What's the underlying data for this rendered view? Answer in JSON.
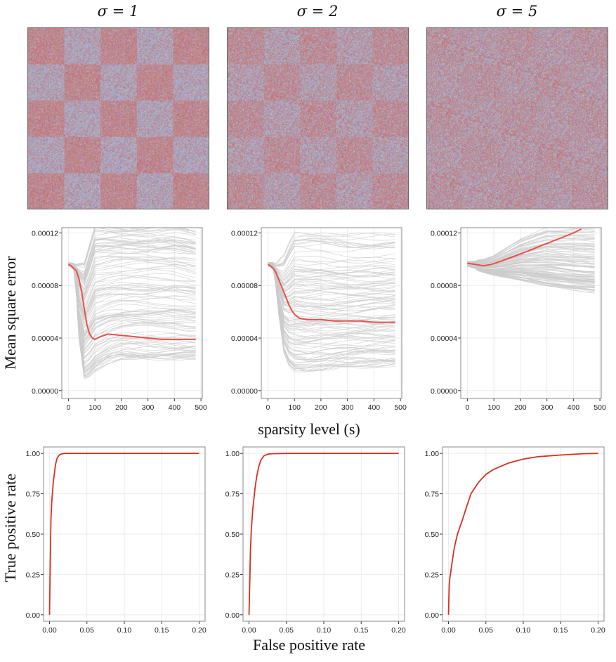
{
  "columns": [
    "σ = 1",
    "σ = 2",
    "σ = 5"
  ],
  "labels": {
    "mse_ylabel": "Mean square error",
    "mse_xlabel": "sparsity level (s)",
    "roc_ylabel": "True positive rate",
    "roc_xlabel": "False positive rate"
  },
  "colors": {
    "red_block": "#c87878",
    "blue_block": "#a7a2cc",
    "curve": "#e8514a",
    "roc": "#d7301f",
    "grey_lines": "#cccccc"
  },
  "chart_data": [
    {
      "type": "heatmap",
      "panel": "σ = 1",
      "grid": [
        5,
        5
      ],
      "pattern": "checkerboard",
      "noise": "high-contrast"
    },
    {
      "type": "heatmap",
      "panel": "σ = 2",
      "grid": [
        5,
        5
      ],
      "pattern": "checkerboard",
      "noise": "medium-contrast"
    },
    {
      "type": "heatmap",
      "panel": "σ = 5",
      "grid": [
        5,
        5
      ],
      "pattern": "checkerboard",
      "noise": "low-contrast"
    },
    {
      "type": "line",
      "panel": "σ = 1",
      "xticks": [
        "0",
        "100",
        "200",
        "300",
        "400",
        "500"
      ],
      "xlim": [
        -25,
        505
      ],
      "yticks": [
        "0.00000",
        "0.00004",
        "0.00008",
        "0.00012"
      ],
      "ylim": [
        -6e-06,
        0.000124
      ],
      "mean_curve": {
        "x": [
          0,
          10,
          20,
          30,
          40,
          50,
          60,
          70,
          80,
          90,
          100,
          120,
          150,
          200,
          250,
          300,
          350,
          400,
          450,
          480
        ],
        "y": [
          9.6e-05,
          9.5e-05,
          9.3e-05,
          9.1e-05,
          8.5e-05,
          7.5e-05,
          6.2e-05,
          5e-05,
          4.3e-05,
          4e-05,
          3.9e-05,
          4.1e-05,
          4.3e-05,
          4.2e-05,
          4.1e-05,
          4e-05,
          3.9e-05,
          3.9e-05,
          3.9e-05,
          3.9e-05
        ]
      },
      "envelope": {
        "x": [
          0,
          20,
          40,
          60,
          80,
          100,
          150,
          200,
          300,
          400,
          480
        ],
        "low": [
          9.5e-05,
          9.2e-05,
          4e-05,
          1e-05,
          1.2e-05,
          1.6e-05,
          2.2e-05,
          2.5e-05,
          2.5e-05,
          2.5e-05,
          2.5e-05
        ],
        "high": [
          9.8e-05,
          9.8e-05,
          9.6e-05,
          9.6e-05,
          0.00011,
          0.000124,
          0.000124,
          0.000124,
          0.000124,
          0.000124,
          0.00012
        ]
      }
    },
    {
      "type": "line",
      "panel": "σ = 2",
      "xticks": [
        "0",
        "100",
        "200",
        "300",
        "400",
        "500"
      ],
      "xlim": [
        -25,
        505
      ],
      "yticks": [
        "0.00000",
        "0.00004",
        "0.00008",
        "0.00012"
      ],
      "ylim": [
        -6e-06,
        0.000124
      ],
      "mean_curve": {
        "x": [
          0,
          10,
          20,
          30,
          40,
          50,
          60,
          70,
          80,
          90,
          100,
          120,
          150,
          200,
          250,
          300,
          350,
          400,
          450,
          480
        ],
        "y": [
          9.6e-05,
          9.5e-05,
          9.3e-05,
          9e-05,
          8.5e-05,
          8e-05,
          7.5e-05,
          7e-05,
          6.5e-05,
          6.1e-05,
          5.8e-05,
          5.5e-05,
          5.4e-05,
          5.4e-05,
          5.3e-05,
          5.3e-05,
          5.3e-05,
          5.2e-05,
          5.2e-05,
          5.2e-05
        ]
      },
      "envelope": {
        "x": [
          0,
          20,
          40,
          60,
          80,
          100,
          150,
          200,
          300,
          400,
          480
        ],
        "low": [
          9.5e-05,
          9.2e-05,
          6e-05,
          3e-05,
          2e-05,
          1.6e-05,
          1.5e-05,
          1.6e-05,
          1.8e-05,
          1.9e-05,
          2e-05
        ],
        "high": [
          9.8e-05,
          9.9e-05,
          0.0001,
          0.000105,
          0.000115,
          0.000124,
          0.000124,
          0.000124,
          0.000122,
          0.000122,
          0.000122
        ]
      }
    },
    {
      "type": "line",
      "panel": "σ = 5",
      "xticks": [
        "0",
        "100",
        "200",
        "300",
        "400",
        "500"
      ],
      "xlim": [
        -25,
        505
      ],
      "yticks": [
        "0.00000",
        "0.00004",
        "0.00008",
        "0.00012"
      ],
      "ylim": [
        -6e-06,
        0.000124
      ],
      "mean_curve": {
        "x": [
          0,
          30,
          60,
          90,
          120,
          160,
          200,
          250,
          300,
          350,
          400,
          430
        ],
        "y": [
          9.7e-05,
          9.6e-05,
          9.5e-05,
          9.6e-05,
          9.8e-05,
          0.000101,
          0.000104,
          0.000108,
          0.000112,
          0.000116,
          0.00012,
          0.000123
        ]
      },
      "envelope": {
        "x": [
          0,
          60,
          100,
          200,
          300,
          400,
          480
        ],
        "low": [
          9.4e-05,
          9e-05,
          8.8e-05,
          8.4e-05,
          8e-05,
          7.7e-05,
          7.5e-05
        ],
        "high": [
          9.9e-05,
          0.0001,
          0.000103,
          0.000116,
          0.000124,
          0.000124,
          0.000124
        ]
      }
    },
    {
      "type": "line",
      "panel": "σ = 1",
      "xticks": [
        "0.00",
        "0.05",
        "0.10",
        "0.15",
        "0.20"
      ],
      "xlim": [
        -0.008,
        0.208
      ],
      "yticks": [
        "0.00",
        "0.25",
        "0.50",
        "0.75",
        "1.00"
      ],
      "ylim": [
        -0.04,
        1.04
      ],
      "roc": {
        "x": [
          0,
          0.001,
          0.002,
          0.003,
          0.005,
          0.008,
          0.01,
          0.013,
          0.016,
          0.02,
          0.05,
          0.1,
          0.2
        ],
        "y": [
          0,
          0.35,
          0.6,
          0.7,
          0.82,
          0.93,
          0.97,
          0.99,
          0.997,
          1.0,
          1.0,
          1.0,
          1.0
        ]
      }
    },
    {
      "type": "line",
      "panel": "σ = 2",
      "xticks": [
        "0.00",
        "0.05",
        "0.10",
        "0.15",
        "0.20"
      ],
      "xlim": [
        -0.008,
        0.208
      ],
      "yticks": [
        "0.00",
        "0.25",
        "0.50",
        "0.75",
        "1.00"
      ],
      "ylim": [
        -0.04,
        1.04
      ],
      "roc": {
        "x": [
          0,
          0.001,
          0.002,
          0.003,
          0.005,
          0.008,
          0.01,
          0.013,
          0.016,
          0.02,
          0.025,
          0.03,
          0.05,
          0.1,
          0.2
        ],
        "y": [
          0,
          0.2,
          0.4,
          0.52,
          0.65,
          0.78,
          0.85,
          0.92,
          0.96,
          0.985,
          0.995,
          0.998,
          1.0,
          1.0,
          1.0
        ]
      }
    },
    {
      "type": "line",
      "panel": "σ = 5",
      "xticks": [
        "0.00",
        "0.05",
        "0.10",
        "0.15",
        "0.20"
      ],
      "xlim": [
        -0.008,
        0.208
      ],
      "yticks": [
        "0.00",
        "0.25",
        "0.50",
        "0.75",
        "1.00"
      ],
      "ylim": [
        -0.04,
        1.04
      ],
      "roc": {
        "x": [
          0,
          0.001,
          0.002,
          0.005,
          0.008,
          0.012,
          0.018,
          0.025,
          0.03,
          0.04,
          0.05,
          0.06,
          0.08,
          0.1,
          0.12,
          0.15,
          0.18,
          0.2
        ],
        "y": [
          0,
          0.19,
          0.23,
          0.33,
          0.42,
          0.5,
          0.58,
          0.68,
          0.75,
          0.82,
          0.87,
          0.9,
          0.94,
          0.965,
          0.98,
          0.99,
          0.998,
          1.0
        ]
      }
    }
  ]
}
